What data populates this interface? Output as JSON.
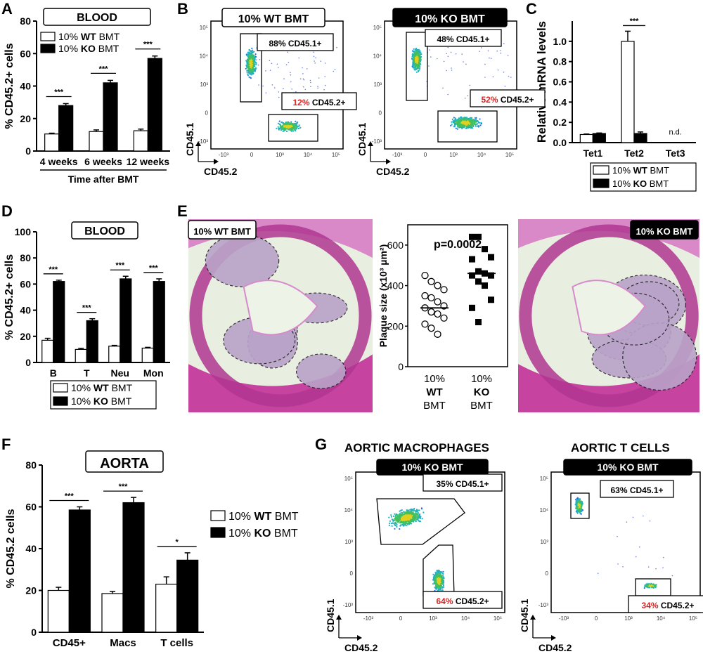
{
  "colors": {
    "wt": "#ffffff",
    "ko": "#000000",
    "red": "#e02020",
    "stain": "#c03a9e"
  },
  "panel_letters": {
    "A": "A",
    "B": "B",
    "C": "C",
    "D": "D",
    "E": "E",
    "F": "F",
    "G": "G"
  },
  "chart_data": [
    {
      "id": "A",
      "type": "bar",
      "title": "BLOOD",
      "categories": [
        "4 weeks",
        "6 weeks",
        "12 weeks"
      ],
      "series": [
        {
          "name": "10% WT BMT",
          "values": [
            10.5,
            12,
            12.5
          ],
          "errors": [
            0.5,
            1,
            1
          ]
        },
        {
          "name": "10% KO BMT",
          "values": [
            28,
            42,
            57
          ],
          "errors": [
            1.2,
            1.5,
            1.5
          ]
        }
      ],
      "ylabel": "% CD45.2+ cells",
      "xlabel": "Time after BMT",
      "ylim": [
        0,
        80
      ],
      "yticks": [
        0,
        20,
        40,
        60,
        80
      ],
      "significance": [
        "***",
        "***",
        "***"
      ],
      "legend": [
        {
          "pct": "10%",
          "geno": "WT",
          "suffix": "BMT"
        },
        {
          "pct": "10%",
          "geno": "KO",
          "suffix": "BMT"
        }
      ]
    },
    {
      "id": "C",
      "type": "bar",
      "categories": [
        "Tet1",
        "Tet2",
        "Tet3"
      ],
      "series": [
        {
          "name": "10% WT BMT",
          "values": [
            0.08,
            1.0,
            null
          ],
          "errors": [
            0.005,
            0.1,
            0
          ]
        },
        {
          "name": "10% KO BMT",
          "values": [
            0.09,
            0.09,
            null
          ],
          "errors": [
            0.005,
            0.015,
            0
          ]
        }
      ],
      "ylabel": "Relative mRNA levels",
      "ylim": [
        0,
        1.2
      ],
      "yticks": [
        "0.0",
        "0.2",
        "0.4",
        "0.6",
        "0.8",
        "1.0"
      ],
      "significance": [
        "",
        "***",
        ""
      ],
      "nd": "n.d.",
      "legend": [
        {
          "pct": "10%",
          "geno": "WT",
          "suffix": "BMT"
        },
        {
          "pct": "10%",
          "geno": "KO",
          "suffix": "BMT"
        }
      ]
    },
    {
      "id": "D",
      "type": "bar",
      "title": "BLOOD",
      "categories": [
        "B",
        "T",
        "Neu",
        "Mon"
      ],
      "series": [
        {
          "name": "10% WT BMT",
          "values": [
            17,
            10,
            12.5,
            11
          ],
          "errors": [
            1.5,
            0.8,
            0.6,
            0.6
          ]
        },
        {
          "name": "10% KO BMT",
          "values": [
            62,
            32,
            64,
            62
          ],
          "errors": [
            1,
            1.5,
            2,
            2
          ]
        }
      ],
      "ylabel": "% CD45.2+ cells",
      "ylim": [
        0,
        100
      ],
      "yticks": [
        0,
        20,
        40,
        60,
        80,
        100
      ],
      "significance": [
        "***",
        "***",
        "***",
        "***"
      ],
      "legend": [
        {
          "pct": "10%",
          "geno": "WT",
          "suffix": "BMT"
        },
        {
          "pct": "10%",
          "geno": "KO",
          "suffix": "BMT"
        }
      ]
    },
    {
      "id": "E",
      "type": "scatter",
      "annotation": "p=0.0002",
      "ylabel": "Plaque size (x10³ µm²)",
      "ylim": [
        0,
        700
      ],
      "yticks": [
        0,
        200,
        400,
        600
      ],
      "groups": [
        {
          "label": [
            "10%",
            "WT",
            "BMT"
          ],
          "marker": "open-circle",
          "mean": 290,
          "values": [
            450,
            420,
            400,
            380,
            350,
            340,
            320,
            300,
            290,
            270,
            260,
            240,
            210,
            190,
            160
          ]
        },
        {
          "label": [
            "10%",
            "KO",
            "BMT"
          ],
          "marker": "filled-square",
          "mean": 460,
          "values": [
            640,
            640,
            580,
            540,
            530,
            470,
            460,
            450,
            450,
            420,
            400,
            330,
            290,
            220
          ]
        }
      ]
    },
    {
      "id": "F",
      "type": "bar",
      "title": "AORTA",
      "categories": [
        "CD45+",
        "Macs",
        "T cells"
      ],
      "series": [
        {
          "name": "10% WT BMT",
          "values": [
            20,
            18.5,
            23
          ],
          "errors": [
            1.5,
            1,
            3.5
          ]
        },
        {
          "name": "10% KO BMT",
          "values": [
            58.5,
            62,
            34.5
          ],
          "errors": [
            1.5,
            2.5,
            3.5
          ]
        }
      ],
      "ylabel": "% CD45.2 cells",
      "ylim": [
        0,
        80
      ],
      "yticks": [
        0,
        20,
        40,
        60,
        80
      ],
      "significance": [
        "***",
        "***",
        "*"
      ],
      "legend": [
        {
          "pct": "10%",
          "geno": "WT",
          "suffix": "BMT"
        },
        {
          "pct": "10%",
          "geno": "KO",
          "suffix": "BMT"
        }
      ]
    }
  ],
  "flow": {
    "b_wt": {
      "header": "10% WT BMT",
      "gate1": "88% CD45.1+",
      "gate2_pct": "12%",
      "gate2_rest": "CD45.2+",
      "xlabel": "CD45.2",
      "ylabel": "CD45.1"
    },
    "b_ko": {
      "header": "10% KO BMT",
      "gate1": "48% CD45.1+",
      "gate2_pct": "52%",
      "gate2_rest": "CD45.2+",
      "xlabel": "CD45.2",
      "ylabel": "CD45.1"
    },
    "g_title1": "AORTIC MACROPHAGES",
    "g_title2": "AORTIC T CELLS",
    "g_mac": {
      "header": "10% KO BMT",
      "gate1": "35% CD45.1+",
      "gate2_pct": "64%",
      "gate2_rest": "CD45.2+",
      "xlabel": "CD45.2",
      "ylabel": "CD45.1"
    },
    "g_t": {
      "header": "10% KO BMT",
      "gate1": "63% CD45.1+",
      "gate2_pct": "34%",
      "gate2_rest": "CD45.2+",
      "xlabel": "CD45.2",
      "ylabel": "CD45.1"
    }
  },
  "histology": {
    "wt_label": "10% WT BMT",
    "ko_label": "10% KO BMT"
  }
}
